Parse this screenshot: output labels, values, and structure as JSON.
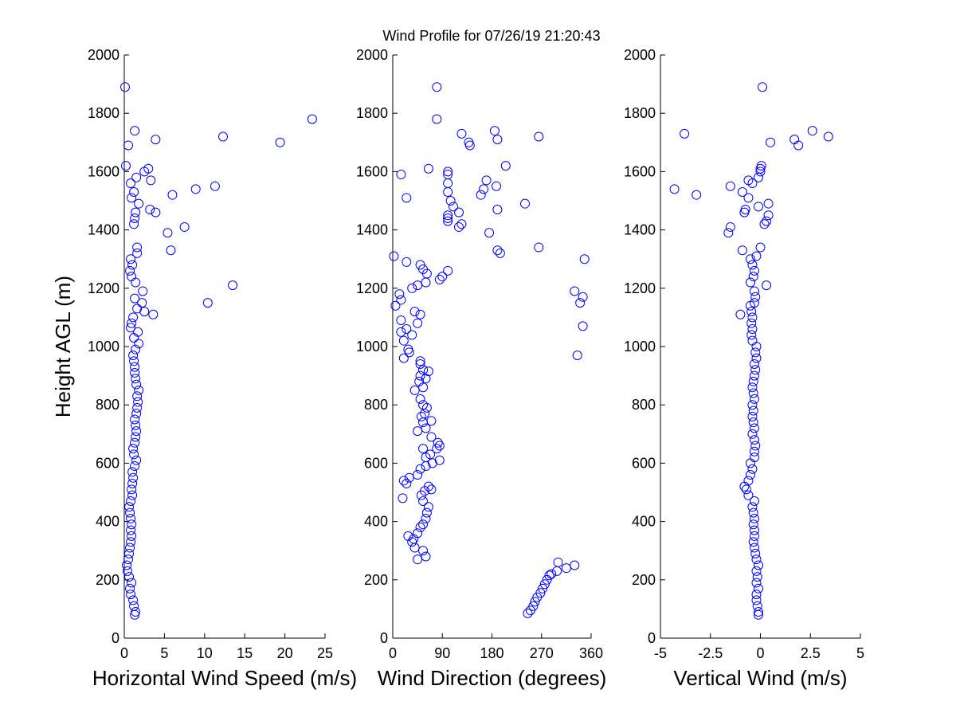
{
  "title": "Wind Profile for  07/26/19 21:20:43",
  "ylabel": "Height AGL (m)",
  "marker_color": "#0000ff",
  "chart_data": [
    {
      "type": "scatter",
      "xlabel": "Horizontal Wind Speed (m/s)",
      "ylabel": "Height AGL (m)",
      "xlim": [
        0,
        25
      ],
      "ylim": [
        0,
        2000
      ],
      "xticks": [
        "0",
        "5",
        "10",
        "15",
        "20",
        "25"
      ],
      "yticks": [
        "0",
        "200",
        "400",
        "600",
        "800",
        "1000",
        "1200",
        "1400",
        "1600",
        "1800",
        "2000"
      ],
      "grid": false,
      "points": [
        [
          1.3,
          80
        ],
        [
          1.4,
          90
        ],
        [
          1.2,
          110
        ],
        [
          1.1,
          130
        ],
        [
          0.8,
          150
        ],
        [
          0.7,
          170
        ],
        [
          0.9,
          190
        ],
        [
          0.6,
          210
        ],
        [
          0.4,
          230
        ],
        [
          0.3,
          250
        ],
        [
          0.5,
          270
        ],
        [
          0.6,
          290
        ],
        [
          0.7,
          310
        ],
        [
          0.8,
          330
        ],
        [
          0.9,
          350
        ],
        [
          0.8,
          370
        ],
        [
          0.9,
          390
        ],
        [
          0.8,
          410
        ],
        [
          0.7,
          430
        ],
        [
          0.6,
          450
        ],
        [
          0.8,
          470
        ],
        [
          1.0,
          490
        ],
        [
          0.9,
          510
        ],
        [
          1.0,
          530
        ],
        [
          1.1,
          550
        ],
        [
          1.0,
          570
        ],
        [
          1.3,
          590
        ],
        [
          1.5,
          610
        ],
        [
          1.2,
          630
        ],
        [
          1.1,
          650
        ],
        [
          1.3,
          670
        ],
        [
          1.4,
          690
        ],
        [
          1.5,
          710
        ],
        [
          1.4,
          730
        ],
        [
          1.3,
          750
        ],
        [
          1.5,
          770
        ],
        [
          1.6,
          790
        ],
        [
          1.7,
          810
        ],
        [
          1.6,
          830
        ],
        [
          1.8,
          850
        ],
        [
          1.5,
          870
        ],
        [
          1.4,
          890
        ],
        [
          1.3,
          910
        ],
        [
          1.3,
          930
        ],
        [
          1.2,
          950
        ],
        [
          1.1,
          970
        ],
        [
          1.4,
          990
        ],
        [
          1.8,
          1010
        ],
        [
          1.2,
          1030
        ],
        [
          1.7,
          1050
        ],
        [
          0.8,
          1065
        ],
        [
          0.9,
          1080
        ],
        [
          1.1,
          1100
        ],
        [
          3.6,
          1110
        ],
        [
          2.5,
          1120
        ],
        [
          1.6,
          1130
        ],
        [
          2.2,
          1150
        ],
        [
          1.3,
          1165
        ],
        [
          2.3,
          1190
        ],
        [
          1.4,
          1220
        ],
        [
          0.9,
          1240
        ],
        [
          0.7,
          1260
        ],
        [
          1.0,
          1280
        ],
        [
          0.8,
          1300
        ],
        [
          1.6,
          1320
        ],
        [
          1.6,
          1340
        ],
        [
          1.2,
          1420
        ],
        [
          1.3,
          1440
        ],
        [
          1.4,
          1460
        ],
        [
          0.9,
          1510
        ],
        [
          1.2,
          1530
        ],
        [
          0.8,
          1560
        ],
        [
          1.5,
          1580
        ],
        [
          2.5,
          1600
        ],
        [
          3.0,
          1610
        ],
        [
          3.3,
          1570
        ],
        [
          6.0,
          1520
        ],
        [
          1.8,
          1490
        ],
        [
          3.2,
          1470
        ],
        [
          3.9,
          1460
        ],
        [
          5.4,
          1390
        ],
        [
          7.5,
          1410
        ],
        [
          5.8,
          1330
        ],
        [
          8.9,
          1540
        ],
        [
          11.3,
          1550
        ],
        [
          0.2,
          1620
        ],
        [
          0.5,
          1690
        ],
        [
          1.3,
          1740
        ],
        [
          3.9,
          1710
        ],
        [
          12.3,
          1720
        ],
        [
          19.4,
          1700
        ],
        [
          23.4,
          1780
        ],
        [
          0.1,
          1890
        ],
        [
          10.4,
          1150
        ],
        [
          13.5,
          1210
        ]
      ]
    },
    {
      "type": "scatter",
      "xlabel": "Wind Direction (degrees)",
      "ylabel": "Height AGL (m)",
      "xlim": [
        0,
        360
      ],
      "ylim": [
        0,
        2000
      ],
      "xticks": [
        "0",
        "90",
        "180",
        "270",
        "360"
      ],
      "yticks": [
        "0",
        "200",
        "400",
        "600",
        "800",
        "1000",
        "1200",
        "1400",
        "1600",
        "1800",
        "2000"
      ],
      "grid": false,
      "points": [
        [
          245,
          85
        ],
        [
          250,
          95
        ],
        [
          255,
          110
        ],
        [
          258,
          125
        ],
        [
          262,
          140
        ],
        [
          268,
          155
        ],
        [
          272,
          170
        ],
        [
          276,
          185
        ],
        [
          280,
          200
        ],
        [
          284,
          215
        ],
        [
          288,
          220
        ],
        [
          298,
          230
        ],
        [
          300,
          260
        ],
        [
          315,
          240
        ],
        [
          330,
          250
        ],
        [
          45,
          270
        ],
        [
          60,
          280
        ],
        [
          55,
          300
        ],
        [
          40,
          310
        ],
        [
          35,
          330
        ],
        [
          38,
          340
        ],
        [
          28,
          350
        ],
        [
          45,
          360
        ],
        [
          50,
          380
        ],
        [
          55,
          390
        ],
        [
          60,
          410
        ],
        [
          62,
          430
        ],
        [
          65,
          450
        ],
        [
          55,
          470
        ],
        [
          18,
          480
        ],
        [
          52,
          490
        ],
        [
          58,
          505
        ],
        [
          70,
          510
        ],
        [
          65,
          520
        ],
        [
          20,
          540
        ],
        [
          25,
          530
        ],
        [
          30,
          550
        ],
        [
          45,
          560
        ],
        [
          50,
          580
        ],
        [
          60,
          590
        ],
        [
          85,
          610
        ],
        [
          72,
          600
        ],
        [
          60,
          620
        ],
        [
          68,
          630
        ],
        [
          55,
          650
        ],
        [
          80,
          650
        ],
        [
          85,
          660
        ],
        [
          82,
          670
        ],
        [
          70,
          690
        ],
        [
          45,
          710
        ],
        [
          60,
          720
        ],
        [
          55,
          740
        ],
        [
          70,
          745
        ],
        [
          52,
          760
        ],
        [
          58,
          770
        ],
        [
          62,
          790
        ],
        [
          55,
          800
        ],
        [
          50,
          820
        ],
        [
          40,
          850
        ],
        [
          55,
          860
        ],
        [
          48,
          880
        ],
        [
          60,
          890
        ],
        [
          50,
          900
        ],
        [
          55,
          920
        ],
        [
          65,
          915
        ],
        [
          50,
          940
        ],
        [
          50,
          950
        ],
        [
          20,
          960
        ],
        [
          30,
          980
        ],
        [
          28,
          990
        ],
        [
          20,
          1020
        ],
        [
          35,
          1040
        ],
        [
          15,
          1050
        ],
        [
          25,
          1060
        ],
        [
          45,
          1080
        ],
        [
          15,
          1090
        ],
        [
          50,
          1110
        ],
        [
          40,
          1120
        ],
        [
          5,
          1140
        ],
        [
          15,
          1160
        ],
        [
          12,
          1180
        ],
        [
          35,
          1200
        ],
        [
          45,
          1210
        ],
        [
          60,
          1220
        ],
        [
          85,
          1230
        ],
        [
          90,
          1240
        ],
        [
          62,
          1250
        ],
        [
          100,
          1260
        ],
        [
          55,
          1265
        ],
        [
          50,
          1280
        ],
        [
          25,
          1290
        ],
        [
          2,
          1310
        ],
        [
          335,
          970
        ],
        [
          345,
          1070
        ],
        [
          340,
          1150
        ],
        [
          345,
          1170
        ],
        [
          330,
          1190
        ],
        [
          348,
          1300
        ],
        [
          265,
          1340
        ],
        [
          190,
          1330
        ],
        [
          195,
          1320
        ],
        [
          175,
          1390
        ],
        [
          120,
          1410
        ],
        [
          125,
          1420
        ],
        [
          100,
          1430
        ],
        [
          100,
          1440
        ],
        [
          100,
          1450
        ],
        [
          120,
          1460
        ],
        [
          190,
          1470
        ],
        [
          240,
          1490
        ],
        [
          110,
          1480
        ],
        [
          105,
          1500
        ],
        [
          25,
          1510
        ],
        [
          160,
          1520
        ],
        [
          100,
          1530
        ],
        [
          165,
          1540
        ],
        [
          188,
          1550
        ],
        [
          100,
          1560
        ],
        [
          170,
          1570
        ],
        [
          100,
          1590
        ],
        [
          100,
          1600
        ],
        [
          65,
          1610
        ],
        [
          205,
          1620
        ],
        [
          15,
          1590
        ],
        [
          140,
          1690
        ],
        [
          138,
          1700
        ],
        [
          185,
          1740
        ],
        [
          125,
          1730
        ],
        [
          190,
          1710
        ],
        [
          265,
          1720
        ],
        [
          80,
          1780
        ],
        [
          80,
          1890
        ]
      ]
    },
    {
      "type": "scatter",
      "xlabel": "Vertical Wind (m/s)",
      "ylabel": "Height AGL (m)",
      "xlim": [
        -5,
        5
      ],
      "ylim": [
        0,
        2000
      ],
      "xticks": [
        "-5",
        "-2.5",
        "0",
        "2.5",
        "5"
      ],
      "yticks": [
        "0",
        "200",
        "400",
        "600",
        "800",
        "1000",
        "1200",
        "1400",
        "1600",
        "1800",
        "2000"
      ],
      "grid": false,
      "points": [
        [
          -0.1,
          80
        ],
        [
          -0.1,
          90
        ],
        [
          -0.15,
          110
        ],
        [
          -0.2,
          130
        ],
        [
          -0.2,
          150
        ],
        [
          -0.1,
          170
        ],
        [
          -0.2,
          190
        ],
        [
          -0.15,
          210
        ],
        [
          -0.2,
          230
        ],
        [
          -0.1,
          250
        ],
        [
          -0.2,
          270
        ],
        [
          -0.25,
          290
        ],
        [
          -0.3,
          310
        ],
        [
          -0.35,
          330
        ],
        [
          -0.3,
          350
        ],
        [
          -0.3,
          370
        ],
        [
          -0.35,
          390
        ],
        [
          -0.3,
          410
        ],
        [
          -0.35,
          430
        ],
        [
          -0.4,
          450
        ],
        [
          -0.3,
          470
        ],
        [
          -0.6,
          490
        ],
        [
          -0.7,
          510
        ],
        [
          -0.8,
          520
        ],
        [
          -0.6,
          540
        ],
        [
          -0.5,
          560
        ],
        [
          -0.4,
          580
        ],
        [
          -0.5,
          600
        ],
        [
          -0.3,
          620
        ],
        [
          -0.3,
          640
        ],
        [
          -0.25,
          660
        ],
        [
          -0.3,
          680
        ],
        [
          -0.4,
          700
        ],
        [
          -0.3,
          720
        ],
        [
          -0.35,
          740
        ],
        [
          -0.4,
          760
        ],
        [
          -0.35,
          780
        ],
        [
          -0.4,
          800
        ],
        [
          -0.3,
          820
        ],
        [
          -0.35,
          840
        ],
        [
          -0.4,
          860
        ],
        [
          -0.35,
          880
        ],
        [
          -0.3,
          900
        ],
        [
          -0.25,
          920
        ],
        [
          -0.3,
          940
        ],
        [
          -0.2,
          960
        ],
        [
          -0.25,
          980
        ],
        [
          -0.2,
          1000
        ],
        [
          -0.4,
          1020
        ],
        [
          -0.45,
          1040
        ],
        [
          -0.4,
          1060
        ],
        [
          -0.45,
          1080
        ],
        [
          -0.4,
          1100
        ],
        [
          -0.45,
          1120
        ],
        [
          -0.5,
          1140
        ],
        [
          -0.3,
          1150
        ],
        [
          -0.25,
          1170
        ],
        [
          -0.3,
          1190
        ],
        [
          0.3,
          1210
        ],
        [
          -0.5,
          1220
        ],
        [
          -0.35,
          1240
        ],
        [
          -0.3,
          1260
        ],
        [
          -0.4,
          1280
        ],
        [
          -0.5,
          1300
        ],
        [
          -0.2,
          1310
        ],
        [
          -0.9,
          1330
        ],
        [
          0,
          1340
        ],
        [
          -1.5,
          1410
        ],
        [
          -1.6,
          1390
        ],
        [
          -1.0,
          1110
        ],
        [
          0.2,
          1420
        ],
        [
          0.3,
          1430
        ],
        [
          0.4,
          1450
        ],
        [
          -0.8,
          1460
        ],
        [
          -0.75,
          1470
        ],
        [
          -0.1,
          1480
        ],
        [
          0.4,
          1490
        ],
        [
          -0.6,
          1510
        ],
        [
          -0.9,
          1530
        ],
        [
          -1.5,
          1550
        ],
        [
          -0.6,
          1570
        ],
        [
          -0.4,
          1560
        ],
        [
          -0.1,
          1580
        ],
        [
          0,
          1600
        ],
        [
          0,
          1610
        ],
        [
          0.05,
          1620
        ],
        [
          -3.2,
          1520
        ],
        [
          -4.3,
          1540
        ],
        [
          -3.8,
          1730
        ],
        [
          0.5,
          1700
        ],
        [
          1.7,
          1710
        ],
        [
          1.9,
          1690
        ],
        [
          2.6,
          1740
        ],
        [
          3.4,
          1720
        ],
        [
          0.1,
          1890
        ]
      ]
    }
  ]
}
